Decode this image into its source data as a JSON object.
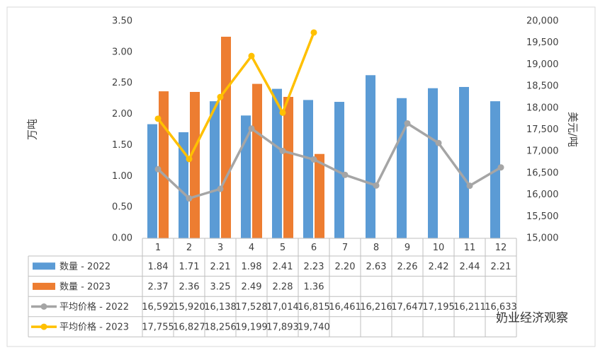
{
  "chart_data": {
    "type": "bar",
    "y_label": "万吨",
    "y2_label": "美元/吨",
    "annotation": "奶业经济观察",
    "categories": [
      "1",
      "2",
      "3",
      "4",
      "5",
      "6",
      "7",
      "8",
      "9",
      "10",
      "11",
      "12"
    ],
    "series": [
      {
        "name": "数量 - 2022",
        "type": "bar",
        "color": "#5b9bd5",
        "values": [
          1.84,
          1.71,
          2.21,
          1.98,
          2.41,
          2.23,
          2.2,
          2.63,
          2.26,
          2.42,
          2.44,
          2.21
        ],
        "value_labels": [
          "1.84",
          "1.71",
          "2.21",
          "1.98",
          "2.41",
          "2.23",
          "2.20",
          "2.63",
          "2.26",
          "2.42",
          "2.44",
          "2.21"
        ]
      },
      {
        "name": "数量 - 2023",
        "type": "bar",
        "color": "#ed7d31",
        "values": [
          2.37,
          2.36,
          3.25,
          2.49,
          2.28,
          1.36,
          null,
          null,
          null,
          null,
          null,
          null
        ],
        "value_labels": [
          "2.37",
          "2.36",
          "3.25",
          "2.49",
          "2.28",
          "1.36",
          null,
          null,
          null,
          null,
          null,
          null
        ]
      },
      {
        "name": "平均价格 - 2022",
        "type": "line",
        "axis": "y2",
        "color": "#a5a5a5",
        "values": [
          16592,
          15920,
          16138,
          17528,
          17014,
          16815,
          16461,
          16216,
          17647,
          17195,
          16211,
          16633
        ],
        "value_labels": [
          "16,592",
          "15,920",
          "16,138",
          "17,528",
          "17,014",
          "16,815",
          "16,461",
          "16,216",
          "17,647",
          "17,195",
          "16,211",
          "16,633"
        ]
      },
      {
        "name": "平均价格 - 2023",
        "type": "line",
        "axis": "y2",
        "color": "#ffc000",
        "values": [
          17755,
          16827,
          18256,
          19199,
          17893,
          19740,
          null,
          null,
          null,
          null,
          null,
          null
        ],
        "value_labels": [
          "17,755",
          "16,827",
          "18,256",
          "19,199",
          "17,893",
          "19,740",
          null,
          null,
          null,
          null,
          null,
          null
        ]
      }
    ],
    "ylim": [
      0,
      3.5
    ],
    "yticks": [
      {
        "value": 0,
        "label": "0.00"
      },
      {
        "value": 0.5,
        "label": "0.50"
      },
      {
        "value": 1,
        "label": "1.00"
      },
      {
        "value": 1.5,
        "label": "1.50"
      },
      {
        "value": 2,
        "label": "2.00"
      },
      {
        "value": 2.5,
        "label": "2.50"
      },
      {
        "value": 3,
        "label": "3.00"
      },
      {
        "value": 3.5,
        "label": "3.50"
      }
    ],
    "y2lim": [
      15000,
      20000
    ],
    "y2ticks": [
      {
        "value": 15000,
        "label": "15,000"
      },
      {
        "value": 15500,
        "label": "15,500"
      },
      {
        "value": 16000,
        "label": "16,000"
      },
      {
        "value": 16500,
        "label": "16,500"
      },
      {
        "value": 17000,
        "label": "17,000"
      },
      {
        "value": 17500,
        "label": "17,500"
      },
      {
        "value": 18000,
        "label": "18,000"
      },
      {
        "value": 18500,
        "label": "18,500"
      },
      {
        "value": 19000,
        "label": "19,000"
      },
      {
        "value": 19500,
        "label": "19,500"
      },
      {
        "value": 20000,
        "label": "20,000"
      }
    ]
  }
}
